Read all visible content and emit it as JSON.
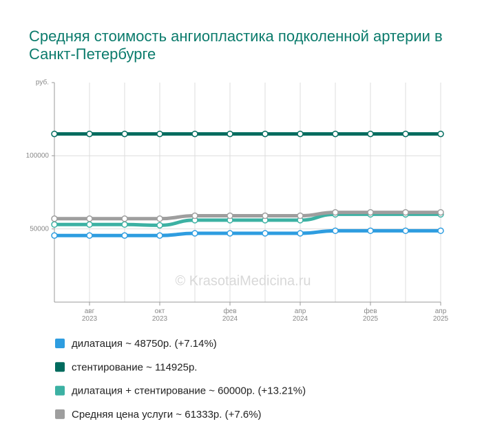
{
  "chart_data": {
    "type": "line",
    "title": "Средняя стоимость ангиопластика подколенной артерии в Санкт-Петербурге",
    "watermark": "© KrasotaiMedicina.ru",
    "categories": [
      null,
      "авг 2023",
      null,
      "окт 2023",
      null,
      "фев 2024",
      null,
      "апр 2024",
      null,
      "фев 2025",
      null,
      "апр 2025"
    ],
    "ylim": [
      0,
      150000
    ],
    "yticks": [
      50000,
      100000,
      {
        "value": 150000,
        "label": "руб."
      }
    ],
    "grid": true,
    "series": [
      {
        "name": "дилатация ~ 48750р. (+7.14%)",
        "color": "#2e9de0",
        "values": [
          45500,
          45500,
          45500,
          45500,
          47000,
          47000,
          47000,
          47000,
          48750,
          48750,
          48750,
          48750
        ]
      },
      {
        "name": "стентирование ~ 114925р.",
        "color": "#006b5e",
        "values": [
          114925,
          114925,
          114925,
          114925,
          114925,
          114925,
          114925,
          114925,
          114925,
          114925,
          114925,
          114925
        ]
      },
      {
        "name": "дилатация + стентирование ~ 60000р. (+13.21%)",
        "color": "#3cb1a3",
        "values": [
          53000,
          53000,
          53000,
          52500,
          56000,
          56000,
          56000,
          56000,
          60000,
          60000,
          60000,
          60000
        ]
      },
      {
        "name": "Средняя цена услуги ~ 61333р. (+7.6%)",
        "color": "#9e9e9e",
        "values": [
          57000,
          57000,
          57000,
          57000,
          59000,
          59000,
          59000,
          59000,
          61333,
          61333,
          61333,
          61333
        ]
      }
    ]
  }
}
